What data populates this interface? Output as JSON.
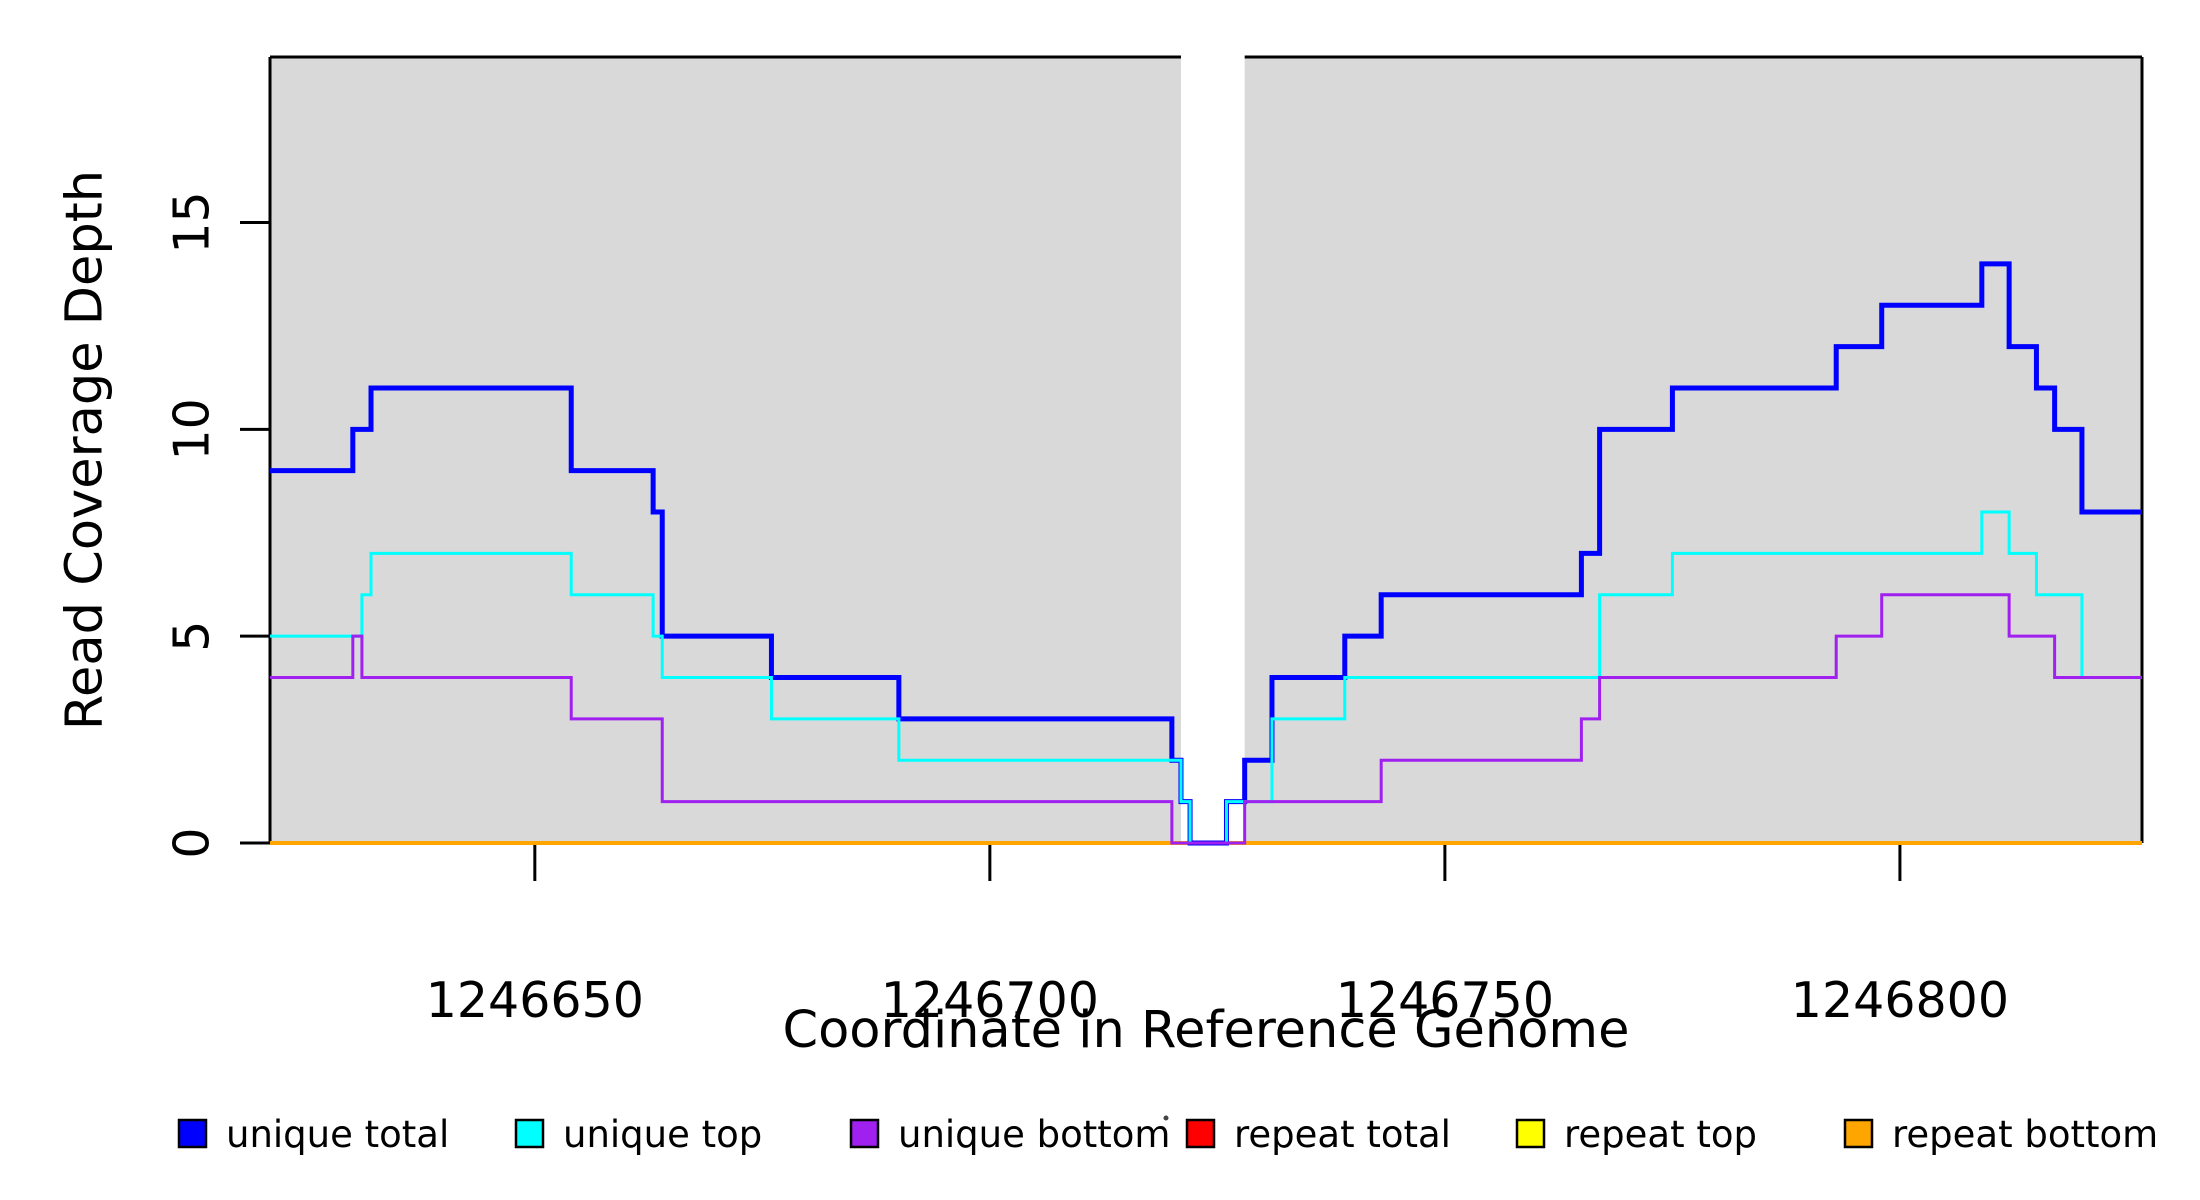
{
  "chart_data": {
    "type": "line",
    "step_style": "post",
    "title": "",
    "xlabel": "Coordinate in Reference Genome",
    "ylabel": "Read Coverage Depth",
    "xlim": [
      1246620.9,
      1246826.6
    ],
    "ylim": [
      0,
      19
    ],
    "x_ticks": [
      1246650,
      1246700,
      1246750,
      1246800
    ],
    "x_tick_labels": [
      "1246650",
      "1246700",
      "1246750",
      "1246800"
    ],
    "y_ticks": [
      0,
      5,
      10,
      15
    ],
    "y_tick_labels": [
      "0",
      "5",
      "10",
      "15"
    ],
    "grid": false,
    "legend_position": "bottom",
    "shading": {
      "color": "#D9D9D9",
      "regions": [
        [
          1246620.9,
          1246721
        ],
        [
          1246728,
          1246826.6
        ]
      ],
      "white_gap_region": [
        1246721,
        1246728
      ]
    },
    "draw_order": [
      "repeat total",
      "repeat top",
      "repeat bottom",
      "unique total",
      "unique top",
      "unique bottom"
    ],
    "series": [
      {
        "name": "unique total",
        "color": "#0000FF",
        "line_width": 5,
        "breakpoints": [
          [
            1246620.9,
            9
          ],
          [
            1246630,
            10
          ],
          [
            1246632,
            11
          ],
          [
            1246654,
            9
          ],
          [
            1246663,
            8
          ],
          [
            1246664,
            5
          ],
          [
            1246676,
            4
          ],
          [
            1246690,
            3
          ],
          [
            1246720,
            2
          ],
          [
            1246721,
            1
          ],
          [
            1246722,
            0
          ],
          [
            1246726,
            1
          ],
          [
            1246728,
            2
          ],
          [
            1246731,
            4
          ],
          [
            1246739,
            5
          ],
          [
            1246743,
            6
          ],
          [
            1246765,
            7
          ],
          [
            1246767,
            10
          ],
          [
            1246775,
            11
          ],
          [
            1246793,
            12
          ],
          [
            1246798,
            13
          ],
          [
            1246809,
            14
          ],
          [
            1246812,
            12
          ],
          [
            1246815,
            11
          ],
          [
            1246817,
            10
          ],
          [
            1246820,
            8
          ]
        ]
      },
      {
        "name": "unique top",
        "color": "#00FFFF",
        "line_width": 3,
        "breakpoints": [
          [
            1246620.9,
            5
          ],
          [
            1246631,
            6
          ],
          [
            1246632,
            7
          ],
          [
            1246654,
            6
          ],
          [
            1246663,
            5
          ],
          [
            1246664,
            4
          ],
          [
            1246676,
            3
          ],
          [
            1246690,
            2
          ],
          [
            1246721,
            1
          ],
          [
            1246722,
            0
          ],
          [
            1246726,
            1
          ],
          [
            1246731,
            3
          ],
          [
            1246739,
            4
          ],
          [
            1246767,
            6
          ],
          [
            1246775,
            7
          ],
          [
            1246809,
            8
          ],
          [
            1246812,
            7
          ],
          [
            1246815,
            6
          ],
          [
            1246820,
            4
          ]
        ]
      },
      {
        "name": "unique bottom",
        "color": "#A020F0",
        "line_width": 3,
        "breakpoints": [
          [
            1246620.9,
            4
          ],
          [
            1246630,
            5
          ],
          [
            1246631,
            4
          ],
          [
            1246654,
            3
          ],
          [
            1246664,
            1
          ],
          [
            1246720,
            0
          ],
          [
            1246728,
            1
          ],
          [
            1246743,
            2
          ],
          [
            1246765,
            3
          ],
          [
            1246767,
            4
          ],
          [
            1246793,
            5
          ],
          [
            1246798,
            6
          ],
          [
            1246812,
            5
          ],
          [
            1246817,
            4
          ]
        ]
      },
      {
        "name": "repeat total",
        "color": "#FF0000",
        "line_width": 3,
        "breakpoints": [
          [
            1246620.9,
            0
          ]
        ]
      },
      {
        "name": "repeat top",
        "color": "#FFFF00",
        "line_width": 3,
        "breakpoints": [
          [
            1246620.9,
            0
          ]
        ]
      },
      {
        "name": "repeat bottom",
        "color": "#FFA500",
        "line_width": 4,
        "breakpoints": [
          [
            1246620.9,
            0
          ]
        ]
      }
    ],
    "legend": {
      "entries": [
        {
          "label": "unique total",
          "color": "#0000FF"
        },
        {
          "label": "unique top",
          "color": "#00FFFF"
        },
        {
          "label": "unique bottom",
          "color": "#A020F0"
        },
        {
          "label": "repeat total",
          "color": "#FF0000"
        },
        {
          "label": "repeat top",
          "color": "#FFFF00"
        },
        {
          "label": "repeat bottom",
          "color": "#FFA500"
        }
      ]
    }
  }
}
